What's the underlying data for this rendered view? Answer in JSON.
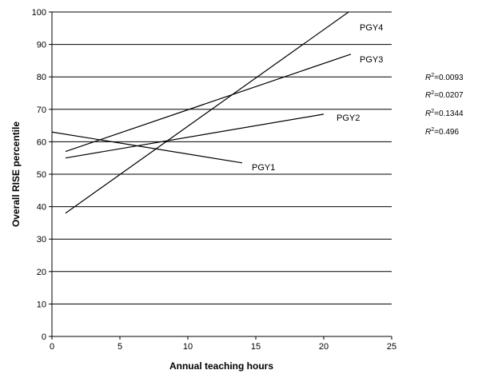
{
  "chart_data": {
    "type": "line",
    "xlabel": "Annual teaching hours",
    "ylabel": "Overall RISE percentile",
    "xlim": [
      0,
      25
    ],
    "ylim": [
      0,
      100
    ],
    "x_ticks": [
      0,
      5,
      10,
      15,
      20,
      25
    ],
    "y_ticks": [
      0,
      10,
      20,
      30,
      40,
      50,
      60,
      70,
      80,
      90,
      100
    ],
    "grid": "horizontal",
    "series": [
      {
        "name": "PGY1",
        "x": [
          0,
          14
        ],
        "y": [
          63,
          53.5
        ]
      },
      {
        "name": "PGY2",
        "x": [
          1,
          20
        ],
        "y": [
          55,
          68.5
        ]
      },
      {
        "name": "PGY3",
        "x": [
          1,
          22
        ],
        "y": [
          57,
          87
        ]
      },
      {
        "name": "PGY4",
        "x": [
          1,
          22
        ],
        "y": [
          38,
          100.5
        ]
      }
    ],
    "r2_annotations": [
      "R²=0.0093",
      "R²=0.0207",
      "R²=0.1344",
      "R²=0.496"
    ]
  }
}
